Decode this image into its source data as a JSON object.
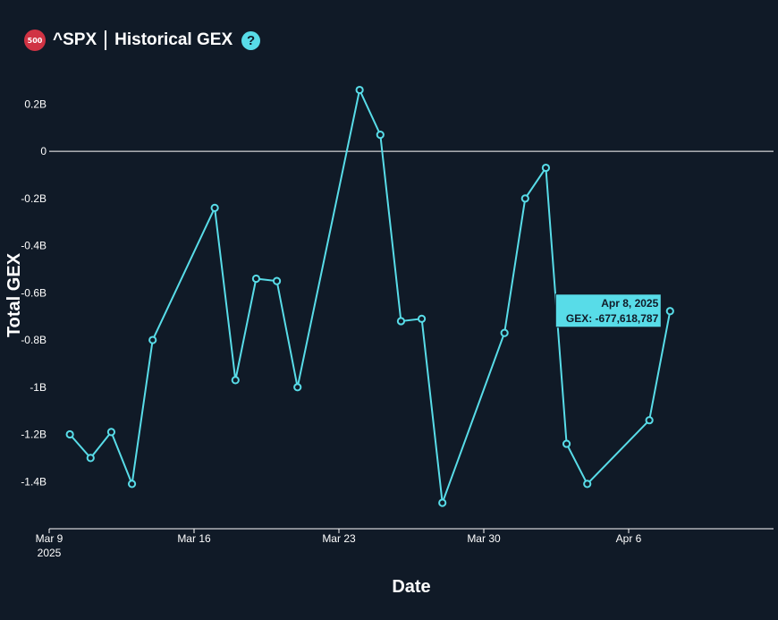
{
  "header": {
    "badge": "500",
    "symbol": "^SPX",
    "title": "Historical GEX",
    "help_icon": "question-circle-icon",
    "help_glyph": "?"
  },
  "colors": {
    "background": "#101a27",
    "line": "#58dce8",
    "tooltip_bg": "#58dce8",
    "badge": "#d03344",
    "text": "#ffffff"
  },
  "chart_data": {
    "type": "line",
    "xlabel": "Date",
    "ylabel": "Total GEX",
    "ylim": [
      -1.6,
      0.3
    ],
    "y_ticks": [
      {
        "value": 0.2,
        "label": "0.2B"
      },
      {
        "value": 0,
        "label": "0"
      },
      {
        "value": -0.2,
        "label": "-0.2B"
      },
      {
        "value": -0.4,
        "label": "-0.4B"
      },
      {
        "value": -0.6,
        "label": "-0.6B"
      },
      {
        "value": -0.8,
        "label": "-0.8B"
      },
      {
        "value": -1.0,
        "label": "-1B"
      },
      {
        "value": -1.2,
        "label": "-1.2B"
      },
      {
        "value": -1.4,
        "label": "-1.4B"
      }
    ],
    "x_ticks": [
      {
        "date": "2025-03-09",
        "label": "Mar 9",
        "sublabel": "2025"
      },
      {
        "date": "2025-03-16",
        "label": "Mar 16"
      },
      {
        "date": "2025-03-23",
        "label": "Mar 23"
      },
      {
        "date": "2025-03-30",
        "label": "Mar 30"
      },
      {
        "date": "2025-04-06",
        "label": "Apr 6"
      }
    ],
    "xlim": [
      "2025-03-09",
      "2025-04-13"
    ],
    "zero_line": true,
    "points": [
      {
        "date": "2025-03-10",
        "value": -1.2
      },
      {
        "date": "2025-03-11",
        "value": -1.3
      },
      {
        "date": "2025-03-12",
        "value": -1.19
      },
      {
        "date": "2025-03-13",
        "value": -1.41
      },
      {
        "date": "2025-03-14",
        "value": -0.8
      },
      {
        "date": "2025-03-17",
        "value": -0.24
      },
      {
        "date": "2025-03-18",
        "value": -0.97
      },
      {
        "date": "2025-03-19",
        "value": -0.54
      },
      {
        "date": "2025-03-20",
        "value": -0.55
      },
      {
        "date": "2025-03-21",
        "value": -1.0
      },
      {
        "date": "2025-03-24",
        "value": 0.26
      },
      {
        "date": "2025-03-25",
        "value": 0.07
      },
      {
        "date": "2025-03-26",
        "value": -0.72
      },
      {
        "date": "2025-03-27",
        "value": -0.71
      },
      {
        "date": "2025-03-28",
        "value": -1.49
      },
      {
        "date": "2025-03-31",
        "value": -0.77
      },
      {
        "date": "2025-04-01",
        "value": -0.2
      },
      {
        "date": "2025-04-02",
        "value": -0.07
      },
      {
        "date": "2025-04-03",
        "value": -1.24
      },
      {
        "date": "2025-04-04",
        "value": -1.41
      },
      {
        "date": "2025-04-07",
        "value": -1.14
      },
      {
        "date": "2025-04-08",
        "value": -0.677618787
      }
    ],
    "tooltip": {
      "date_label": "Apr 8, 2025",
      "value_label": "GEX: -677,618,787"
    }
  }
}
